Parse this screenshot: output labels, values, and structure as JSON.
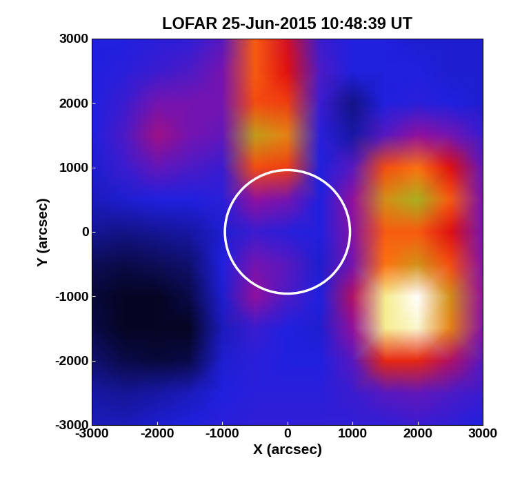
{
  "chart_data": {
    "type": "heatmap",
    "title": "LOFAR 25-Jun-2015 10:48:39 UT",
    "x_label": "X (arcsec)",
    "y_label": "Y (arcsec)",
    "x": [
      -3000,
      -2500,
      -2000,
      -1500,
      -1000,
      -500,
      0,
      500,
      1000,
      1500,
      2000,
      2500,
      3000
    ],
    "y": [
      3000,
      2500,
      2000,
      1500,
      1000,
      500,
      0,
      -500,
      -1000,
      -1500,
      -2000,
      -2500,
      -3000
    ],
    "cells": [
      [
        0.3,
        0.3,
        0.32,
        0.33,
        0.4,
        0.72,
        0.6,
        0.35,
        0.3,
        0.3,
        0.28,
        0.28,
        0.28
      ],
      [
        0.3,
        0.32,
        0.35,
        0.38,
        0.45,
        0.72,
        0.62,
        0.38,
        0.3,
        0.3,
        0.3,
        0.28,
        0.28
      ],
      [
        0.3,
        0.35,
        0.45,
        0.45,
        0.45,
        0.7,
        0.68,
        0.35,
        0.18,
        0.3,
        0.32,
        0.3,
        0.28
      ],
      [
        0.3,
        0.38,
        0.52,
        0.45,
        0.42,
        0.82,
        0.78,
        0.32,
        0.22,
        0.4,
        0.5,
        0.45,
        0.35
      ],
      [
        0.28,
        0.35,
        0.42,
        0.38,
        0.35,
        0.7,
        0.68,
        0.3,
        0.4,
        0.7,
        0.75,
        0.62,
        0.42
      ],
      [
        0.25,
        0.28,
        0.3,
        0.3,
        0.32,
        0.5,
        0.45,
        0.3,
        0.5,
        0.8,
        0.85,
        0.72,
        0.45
      ],
      [
        0.2,
        0.18,
        0.2,
        0.22,
        0.28,
        0.35,
        0.32,
        0.3,
        0.48,
        0.72,
        0.72,
        0.62,
        0.45
      ],
      [
        0.12,
        0.1,
        0.12,
        0.15,
        0.3,
        0.45,
        0.4,
        0.28,
        0.45,
        0.75,
        0.8,
        0.7,
        0.48
      ],
      [
        0.08,
        0.05,
        0.05,
        0.1,
        0.28,
        0.5,
        0.38,
        0.3,
        0.55,
        0.95,
        1.0,
        0.8,
        0.5
      ],
      [
        0.1,
        0.05,
        0.05,
        0.05,
        0.25,
        0.35,
        0.3,
        0.28,
        0.5,
        0.95,
        0.98,
        0.78,
        0.48
      ],
      [
        0.15,
        0.1,
        0.08,
        0.1,
        0.28,
        0.32,
        0.3,
        0.3,
        0.4,
        0.65,
        0.65,
        0.55,
        0.4
      ],
      [
        0.22,
        0.2,
        0.22,
        0.25,
        0.3,
        0.32,
        0.32,
        0.32,
        0.35,
        0.4,
        0.42,
        0.38,
        0.35
      ],
      [
        0.25,
        0.25,
        0.28,
        0.3,
        0.32,
        0.33,
        0.33,
        0.33,
        0.33,
        0.33,
        0.35,
        0.33,
        0.3
      ]
    ],
    "value_range": [
      0,
      1
    ],
    "circle": {
      "x": 0,
      "y": 0,
      "radius": 960
    },
    "xlim": [
      -3000,
      3000
    ],
    "ylim": [
      -3000,
      3000
    ],
    "xticks": [
      -3000,
      -2000,
      -1000,
      0,
      1000,
      2000,
      3000
    ],
    "yticks": [
      -3000,
      -2000,
      -1000,
      0,
      1000,
      2000,
      3000
    ]
  }
}
